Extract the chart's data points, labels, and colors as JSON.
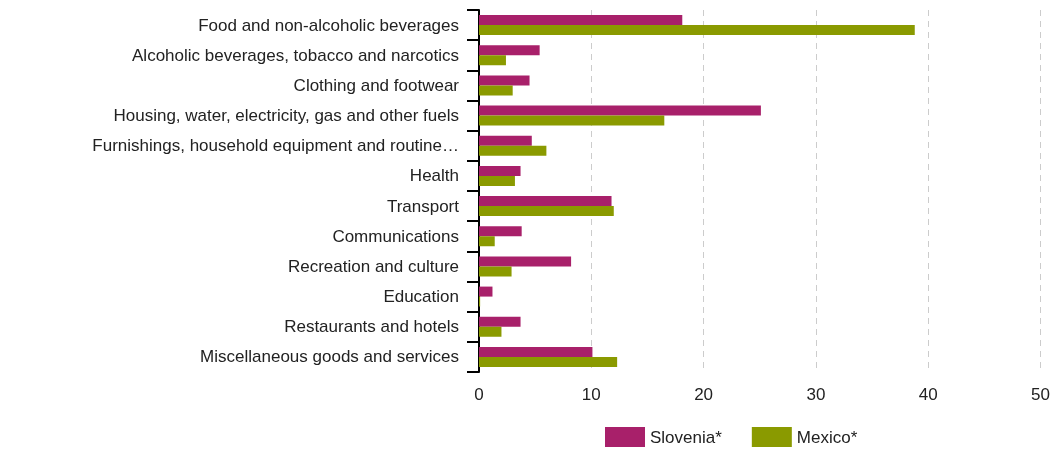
{
  "chart_data": {
    "type": "bar",
    "orientation": "horizontal",
    "categories": [
      "Food and non-alcoholic beverages",
      "Alcoholic beverages, tobacco and narcotics",
      "Clothing and footwear",
      "Housing, water, electricity, gas and other fuels",
      "Furnishings, household equipment and routine…",
      "Health",
      "Transport",
      "Communications",
      "Recreation and culture",
      "Education",
      "Restaurants and hotels",
      "Miscellaneous goods and services"
    ],
    "series": [
      {
        "name": "Slovenia*",
        "color": "#a8206a",
        "values": [
          18.1,
          5.4,
          4.5,
          25.1,
          4.7,
          3.7,
          11.8,
          3.8,
          8.2,
          1.2,
          3.7,
          10.1
        ]
      },
      {
        "name": "Mexico*",
        "color": "#8a9a00",
        "values": [
          38.8,
          2.4,
          3.0,
          16.5,
          6.0,
          3.2,
          12.0,
          1.4,
          2.9,
          0.1,
          2.0,
          12.3
        ]
      }
    ],
    "xlim": [
      0,
      50
    ],
    "xticks": [
      0,
      10,
      20,
      30,
      40,
      50
    ],
    "grid": "x",
    "legend": "bottom"
  }
}
